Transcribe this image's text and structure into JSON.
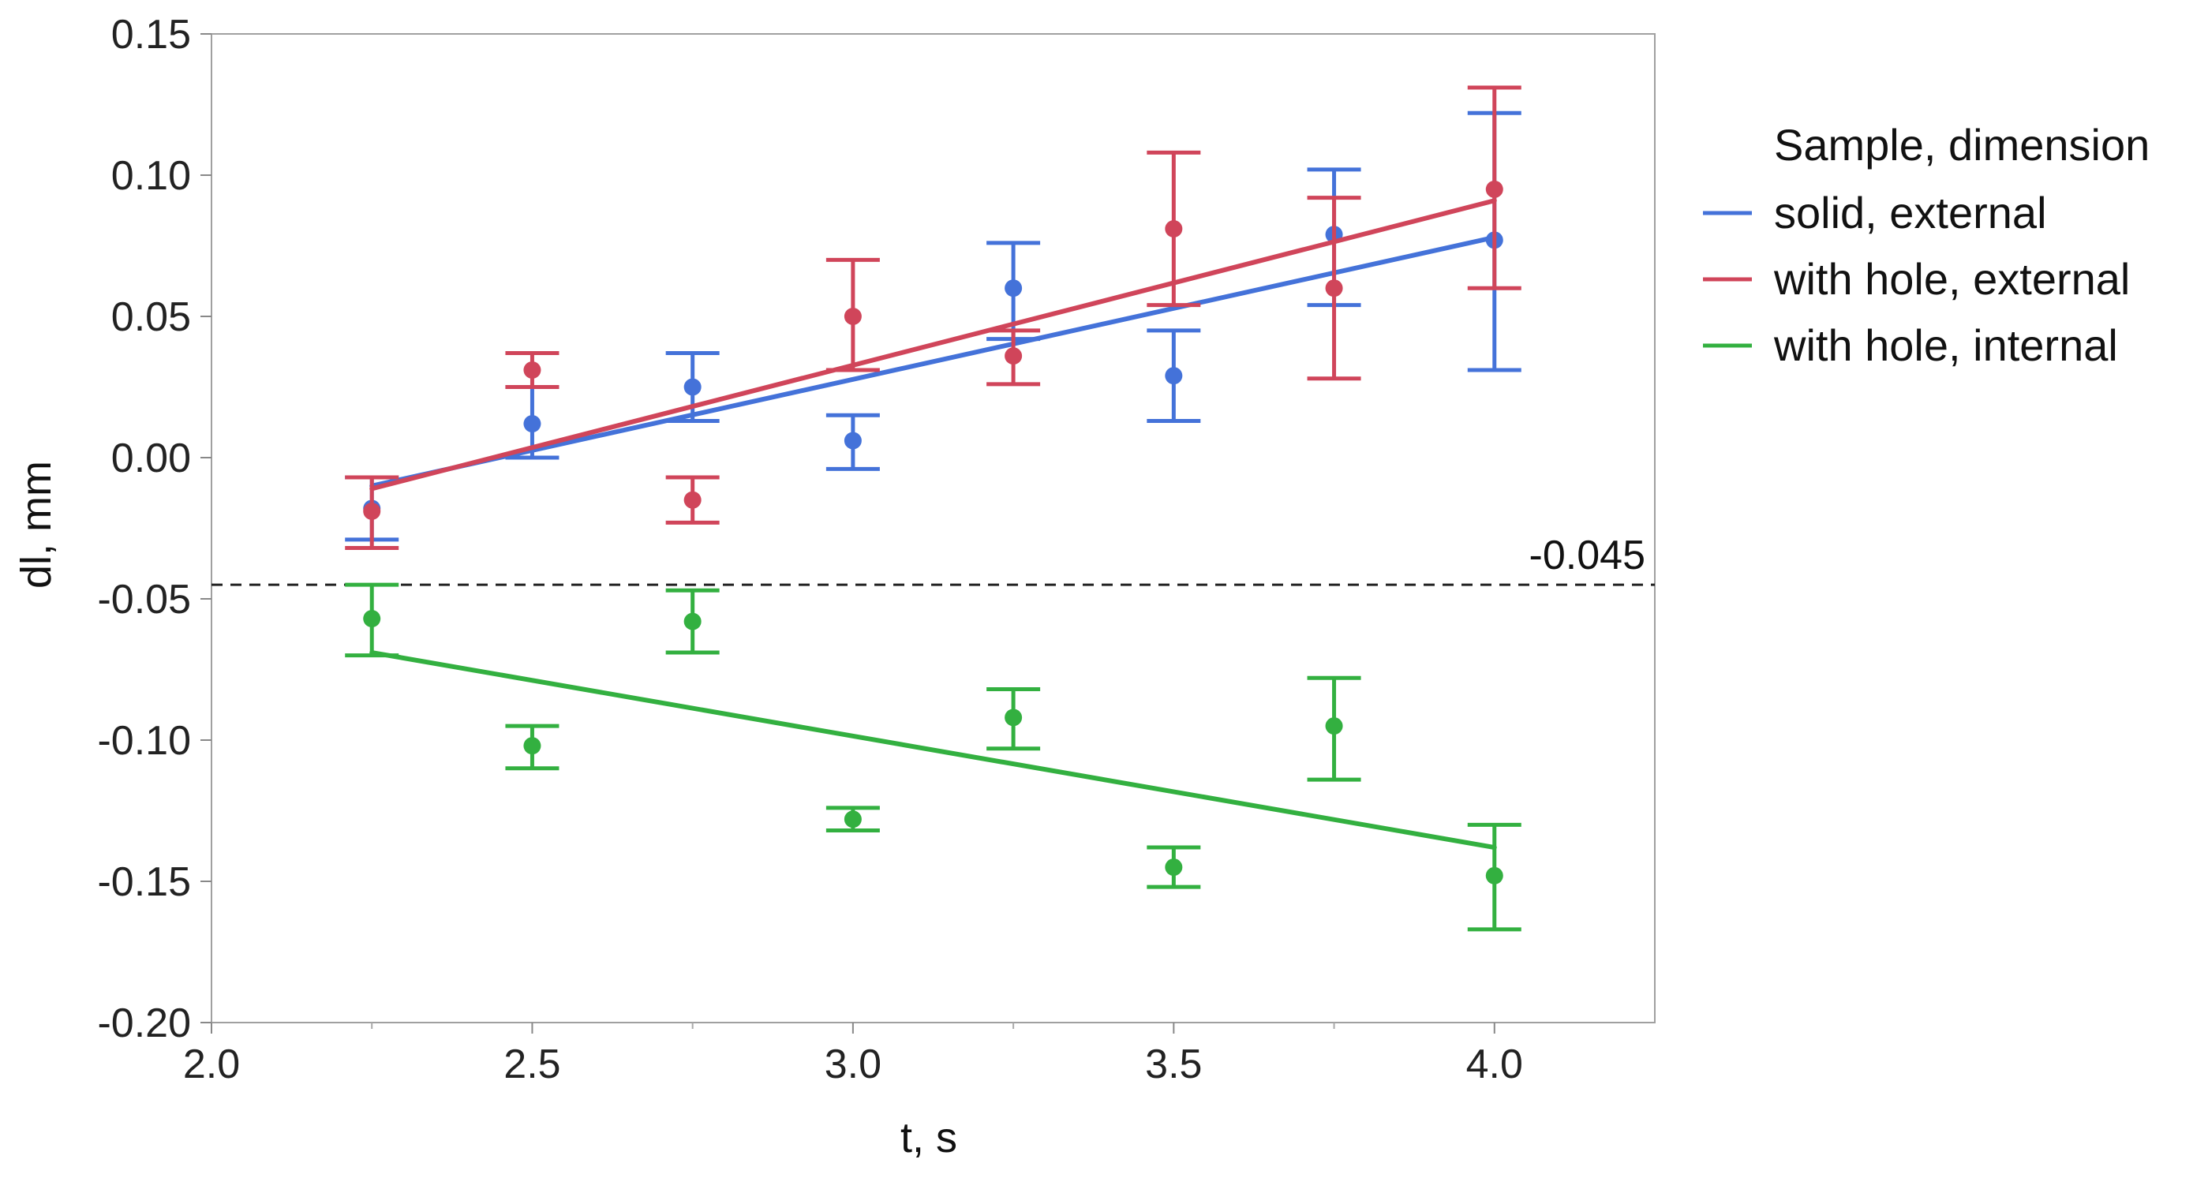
{
  "chart_data": {
    "type": "scatter",
    "title": "",
    "xlabel": "t, s",
    "ylabel": "dl, mm",
    "xlim": [
      2.0,
      4.25
    ],
    "ylim": [
      -0.2,
      0.15
    ],
    "x_ticks": [
      "2.0",
      "2.5",
      "3.0",
      "3.5",
      "4.0"
    ],
    "y_ticks": [
      "-0.20",
      "-0.15",
      "-0.10",
      "-0.05",
      "0.00",
      "0.05",
      "0.10",
      "0.15"
    ],
    "legend": {
      "title": "Sample, dimension",
      "position": "right"
    },
    "reference_line": {
      "y": -0.045,
      "label": "-0.045",
      "style": "dashed"
    },
    "series": [
      {
        "name": "solid, external",
        "color": "#4472d9",
        "x": [
          2.25,
          2.5,
          2.75,
          3.0,
          3.25,
          3.5,
          3.75,
          4.0
        ],
        "y": [
          -0.018,
          0.012,
          0.025,
          0.006,
          0.06,
          0.029,
          0.079,
          0.077
        ],
        "err_low": [
          -0.029,
          0.0,
          0.013,
          -0.004,
          0.042,
          0.013,
          0.054,
          0.031
        ],
        "err_high": [
          -0.007,
          0.025,
          0.037,
          0.015,
          0.076,
          0.045,
          0.102,
          0.122
        ],
        "fit": {
          "x": [
            2.25,
            4.0
          ],
          "y": [
            -0.01,
            0.078
          ]
        }
      },
      {
        "name": "with hole, external",
        "color": "#d0455a",
        "x": [
          2.25,
          2.5,
          2.75,
          3.0,
          3.25,
          3.5,
          3.75,
          4.0
        ],
        "y": [
          -0.019,
          0.031,
          -0.015,
          0.05,
          0.036,
          0.081,
          0.06,
          0.095
        ],
        "err_low": [
          -0.032,
          0.025,
          -0.023,
          0.031,
          0.026,
          0.054,
          0.028,
          0.06
        ],
        "err_high": [
          -0.007,
          0.037,
          -0.007,
          0.07,
          0.045,
          0.108,
          0.092,
          0.131
        ],
        "fit": {
          "x": [
            2.25,
            4.0
          ],
          "y": [
            -0.011,
            0.091
          ]
        }
      },
      {
        "name": "with hole, internal",
        "color": "#33b040",
        "x": [
          2.25,
          2.5,
          2.75,
          3.0,
          3.25,
          3.5,
          3.75,
          4.0
        ],
        "y": [
          -0.057,
          -0.102,
          -0.058,
          -0.128,
          -0.092,
          -0.145,
          -0.095,
          -0.148
        ],
        "err_low": [
          -0.07,
          -0.11,
          -0.069,
          -0.132,
          -0.103,
          -0.152,
          -0.114,
          -0.167
        ],
        "err_high": [
          -0.045,
          -0.095,
          -0.047,
          -0.124,
          -0.082,
          -0.138,
          -0.078,
          -0.13
        ],
        "fit": {
          "x": [
            2.25,
            4.0
          ],
          "y": [
            -0.069,
            -0.138
          ]
        }
      }
    ]
  }
}
